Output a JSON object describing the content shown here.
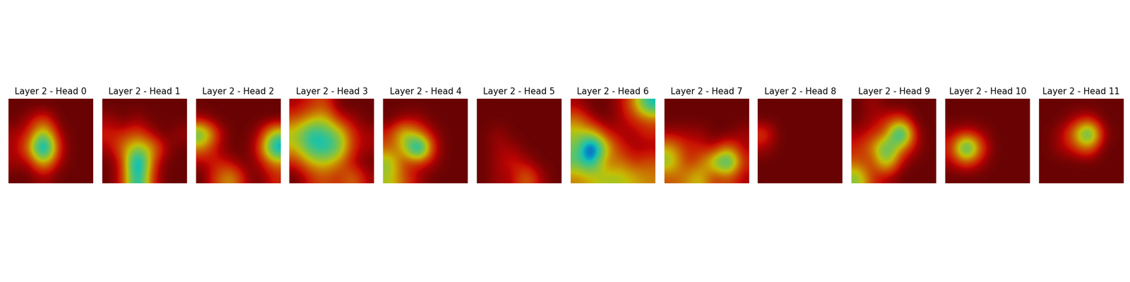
{
  "chart_data": [
    {
      "type": "heatmap",
      "title": "Layer 2 - Head 0",
      "tick_labels": false,
      "cells": [
        [
          0.9,
          0.9,
          0.9,
          0.9,
          0.9,
          0.9
        ],
        [
          0.9,
          0.85,
          0.75,
          0.9,
          0.9,
          0.9
        ],
        [
          0.85,
          0.8,
          0.5,
          0.85,
          0.9,
          0.9
        ],
        [
          0.85,
          0.7,
          0.15,
          0.8,
          0.9,
          0.9
        ],
        [
          0.85,
          0.85,
          0.6,
          0.85,
          0.9,
          0.9
        ],
        [
          0.9,
          0.9,
          0.85,
          0.9,
          0.9,
          0.9
        ]
      ]
    },
    {
      "type": "heatmap",
      "title": "Layer 2 - Head 1",
      "tick_labels": false,
      "cells": [
        [
          0.9,
          0.9,
          0.9,
          0.9,
          0.9,
          0.9
        ],
        [
          0.85,
          0.9,
          0.85,
          0.9,
          0.9,
          0.9
        ],
        [
          0.8,
          0.8,
          0.75,
          0.85,
          0.9,
          0.85
        ],
        [
          0.85,
          0.7,
          0.55,
          0.65,
          0.85,
          0.9
        ],
        [
          0.9,
          0.8,
          0.2,
          0.75,
          0.9,
          0.9
        ],
        [
          0.9,
          0.8,
          0.3,
          0.8,
          0.9,
          0.9
        ]
      ]
    },
    {
      "type": "heatmap",
      "title": "Layer 2 - Head 2",
      "tick_labels": false,
      "cells": [
        [
          0.9,
          0.9,
          0.9,
          0.9,
          0.9,
          0.9
        ],
        [
          0.85,
          0.9,
          0.9,
          0.9,
          0.9,
          0.9
        ],
        [
          0.45,
          0.8,
          0.9,
          0.9,
          0.85,
          0.55
        ],
        [
          0.7,
          0.85,
          0.9,
          0.9,
          0.8,
          0.3
        ],
        [
          0.85,
          0.8,
          0.85,
          0.9,
          0.85,
          0.7
        ],
        [
          0.9,
          0.75,
          0.65,
          0.85,
          0.9,
          0.8
        ]
      ]
    },
    {
      "type": "heatmap",
      "title": "Layer 2 - Head 3",
      "tick_labels": false,
      "cells": [
        [
          0.85,
          0.8,
          0.75,
          0.9,
          0.9,
          0.9
        ],
        [
          0.75,
          0.65,
          0.6,
          0.8,
          0.85,
          0.9
        ],
        [
          0.6,
          0.4,
          0.45,
          0.55,
          0.8,
          0.85
        ],
        [
          0.65,
          0.45,
          0.4,
          0.5,
          0.8,
          0.85
        ],
        [
          0.8,
          0.65,
          0.6,
          0.7,
          0.85,
          0.9
        ],
        [
          0.9,
          0.8,
          0.75,
          0.8,
          0.7,
          0.85
        ]
      ]
    },
    {
      "type": "heatmap",
      "title": "Layer 2 - Head 4",
      "tick_labels": false,
      "cells": [
        [
          0.9,
          0.9,
          0.9,
          0.9,
          0.9,
          0.9
        ],
        [
          0.9,
          0.85,
          0.85,
          0.9,
          0.9,
          0.9
        ],
        [
          0.8,
          0.55,
          0.7,
          0.85,
          0.9,
          0.9
        ],
        [
          0.75,
          0.65,
          0.15,
          0.8,
          0.9,
          0.9
        ],
        [
          0.55,
          0.8,
          0.8,
          0.85,
          0.9,
          0.9
        ],
        [
          0.6,
          0.75,
          0.85,
          0.9,
          0.9,
          0.9
        ]
      ]
    },
    {
      "type": "heatmap",
      "title": "Layer 2 - Head 5",
      "tick_labels": false,
      "cells": [
        [
          0.9,
          0.9,
          0.9,
          0.9,
          0.9,
          0.9
        ],
        [
          0.9,
          0.9,
          0.9,
          0.9,
          0.9,
          0.9
        ],
        [
          0.9,
          0.85,
          0.9,
          0.9,
          0.9,
          0.9
        ],
        [
          0.9,
          0.85,
          0.85,
          0.9,
          0.9,
          0.9
        ],
        [
          0.9,
          0.85,
          0.8,
          0.85,
          0.9,
          0.9
        ],
        [
          0.9,
          0.85,
          0.85,
          0.7,
          0.85,
          0.9
        ]
      ]
    },
    {
      "type": "heatmap",
      "title": "Layer 2 - Head 6",
      "tick_labels": false,
      "cells": [
        [
          0.85,
          0.9,
          0.9,
          0.85,
          0.7,
          0.4
        ],
        [
          0.7,
          0.85,
          0.9,
          0.85,
          0.8,
          0.75
        ],
        [
          0.6,
          0.6,
          0.8,
          0.85,
          0.85,
          0.8
        ],
        [
          0.55,
          0.15,
          0.6,
          0.8,
          0.85,
          0.85
        ],
        [
          0.5,
          0.35,
          0.75,
          0.7,
          0.8,
          0.75
        ],
        [
          0.7,
          0.65,
          0.6,
          0.6,
          0.65,
          0.7
        ]
      ]
    },
    {
      "type": "heatmap",
      "title": "Layer 2 - Head 7",
      "tick_labels": false,
      "cells": [
        [
          0.9,
          0.9,
          0.9,
          0.9,
          0.9,
          0.9
        ],
        [
          0.9,
          0.9,
          0.9,
          0.9,
          0.9,
          0.9
        ],
        [
          0.85,
          0.85,
          0.85,
          0.9,
          0.9,
          0.85
        ],
        [
          0.65,
          0.8,
          0.8,
          0.85,
          0.7,
          0.85
        ],
        [
          0.55,
          0.8,
          0.75,
          0.55,
          0.3,
          0.8
        ],
        [
          0.75,
          0.7,
          0.6,
          0.8,
          0.75,
          0.85
        ]
      ]
    },
    {
      "type": "heatmap",
      "title": "Layer 2 - Head 8",
      "tick_labels": false,
      "cells": [
        [
          0.9,
          0.9,
          0.9,
          0.9,
          0.9,
          0.9
        ],
        [
          0.9,
          0.9,
          0.9,
          0.9,
          0.9,
          0.9
        ],
        [
          0.75,
          0.9,
          0.9,
          0.9,
          0.9,
          0.9
        ],
        [
          0.85,
          0.9,
          0.9,
          0.9,
          0.9,
          0.9
        ],
        [
          0.9,
          0.9,
          0.9,
          0.9,
          0.9,
          0.9
        ],
        [
          0.9,
          0.9,
          0.9,
          0.9,
          0.9,
          0.9
        ]
      ]
    },
    {
      "type": "heatmap",
      "title": "Layer 2 - Head 9",
      "tick_labels": false,
      "cells": [
        [
          0.9,
          0.85,
          0.9,
          0.9,
          0.9,
          0.9
        ],
        [
          0.9,
          0.85,
          0.8,
          0.75,
          0.9,
          0.9
        ],
        [
          0.85,
          0.8,
          0.75,
          0.2,
          0.85,
          0.9
        ],
        [
          0.8,
          0.7,
          0.4,
          0.7,
          0.85,
          0.9
        ],
        [
          0.75,
          0.8,
          0.5,
          0.85,
          0.9,
          0.9
        ],
        [
          0.55,
          0.8,
          0.85,
          0.9,
          0.9,
          0.9
        ]
      ]
    },
    {
      "type": "heatmap",
      "title": "Layer 2 - Head 10",
      "tick_labels": false,
      "cells": [
        [
          0.9,
          0.9,
          0.9,
          0.9,
          0.9,
          0.9
        ],
        [
          0.9,
          0.9,
          0.9,
          0.9,
          0.9,
          0.9
        ],
        [
          0.85,
          0.8,
          0.85,
          0.9,
          0.9,
          0.9
        ],
        [
          0.8,
          0.25,
          0.75,
          0.9,
          0.9,
          0.9
        ],
        [
          0.85,
          0.75,
          0.85,
          0.9,
          0.9,
          0.9
        ],
        [
          0.9,
          0.9,
          0.9,
          0.9,
          0.9,
          0.9
        ]
      ]
    },
    {
      "type": "heatmap",
      "title": "Layer 2 - Head 11",
      "tick_labels": false,
      "cells": [
        [
          0.9,
          0.9,
          0.9,
          0.9,
          0.9,
          0.9
        ],
        [
          0.9,
          0.9,
          0.85,
          0.8,
          0.9,
          0.9
        ],
        [
          0.9,
          0.85,
          0.7,
          0.3,
          0.85,
          0.9
        ],
        [
          0.9,
          0.85,
          0.8,
          0.7,
          0.9,
          0.9
        ],
        [
          0.9,
          0.9,
          0.9,
          0.9,
          0.9,
          0.9
        ],
        [
          0.9,
          0.9,
          0.9,
          0.9,
          0.9,
          0.9
        ]
      ]
    }
  ]
}
